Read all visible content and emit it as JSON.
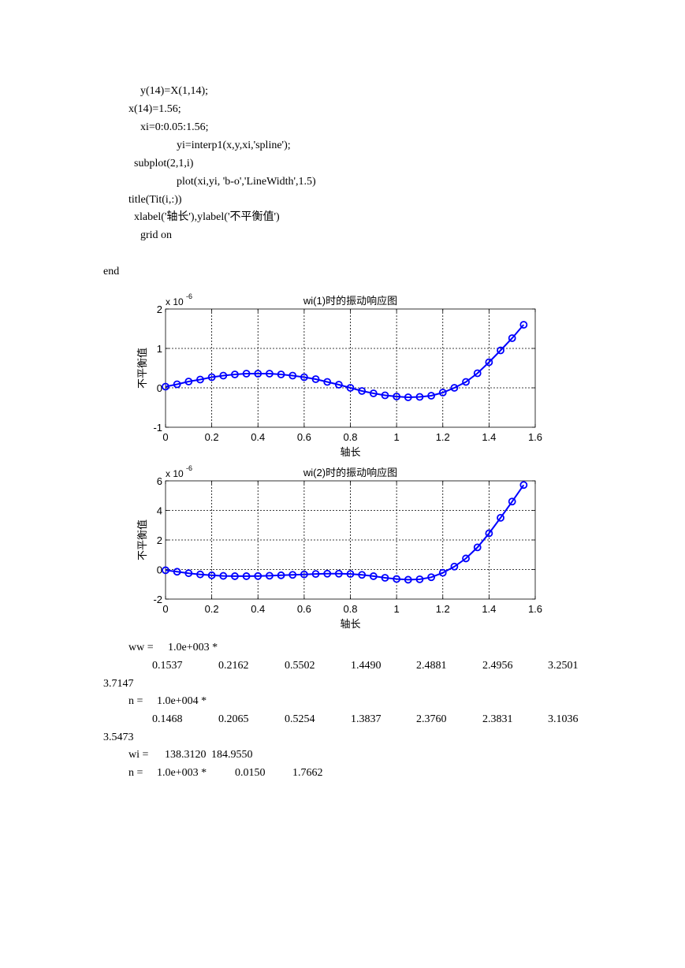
{
  "code_lines": [
    "y(14)=X(1,14);",
    "x(14)=1.56;",
    "xi=0:0.05:1.56;",
    "yi=interp1(x,y,xi,'spline');",
    "subplot(2,1,i)",
    "plot(xi,yi, 'b-o','LineWidth',1.5)",
    "title(Tit(i,:))",
    "xlabel('轴长'),ylabel('不平衡值')",
    "grid on",
    "end"
  ],
  "chart_data": [
    {
      "type": "line",
      "title": "wi(1)时的振动响应图",
      "xlabel": "轴长",
      "ylabel": "不平衡值",
      "scale_label": "x 10",
      "scale_exponent": "-6",
      "xlim": [
        0,
        1.6
      ],
      "ylim": [
        -1,
        2
      ],
      "xticks": [
        "0",
        "0.2",
        "0.4",
        "0.6",
        "0.8",
        "1",
        "1.2",
        "1.4",
        "1.6"
      ],
      "yticks": [
        "-1",
        "0",
        "1",
        "2"
      ],
      "grid": true,
      "color": "#0000ff",
      "marker": "circle",
      "x": [
        0,
        0.05,
        0.1,
        0.15,
        0.2,
        0.25,
        0.3,
        0.35,
        0.4,
        0.45,
        0.5,
        0.55,
        0.6,
        0.65,
        0.7,
        0.75,
        0.8,
        0.85,
        0.9,
        0.95,
        1.0,
        1.05,
        1.1,
        1.15,
        1.2,
        1.25,
        1.3,
        1.35,
        1.4,
        1.45,
        1.5,
        1.55
      ],
      "y": [
        0.03,
        0.09,
        0.16,
        0.21,
        0.27,
        0.31,
        0.34,
        0.36,
        0.36,
        0.36,
        0.34,
        0.31,
        0.27,
        0.22,
        0.15,
        0.08,
        0.0,
        -0.08,
        -0.14,
        -0.19,
        -0.22,
        -0.24,
        -0.23,
        -0.2,
        -0.12,
        0.0,
        0.15,
        0.37,
        0.65,
        0.95,
        1.26,
        1.6
      ]
    },
    {
      "type": "line",
      "title": "wi(2)时的振动响应图",
      "xlabel": "轴长",
      "ylabel": "不平衡值",
      "scale_label": "x 10",
      "scale_exponent": "-6",
      "xlim": [
        0,
        1.6
      ],
      "ylim": [
        -2,
        6
      ],
      "xticks": [
        "0",
        "0.2",
        "0.4",
        "0.6",
        "0.8",
        "1",
        "1.2",
        "1.4",
        "1.6"
      ],
      "yticks": [
        "-2",
        "0",
        "2",
        "4",
        "6"
      ],
      "grid": true,
      "color": "#0000ff",
      "marker": "circle",
      "x": [
        0,
        0.05,
        0.1,
        0.15,
        0.2,
        0.25,
        0.3,
        0.35,
        0.4,
        0.45,
        0.5,
        0.55,
        0.6,
        0.65,
        0.7,
        0.75,
        0.8,
        0.85,
        0.9,
        0.95,
        1.0,
        1.05,
        1.1,
        1.15,
        1.2,
        1.25,
        1.3,
        1.35,
        1.4,
        1.45,
        1.5,
        1.55
      ],
      "y": [
        -0.05,
        -0.15,
        -0.25,
        -0.33,
        -0.39,
        -0.43,
        -0.45,
        -0.45,
        -0.44,
        -0.42,
        -0.39,
        -0.36,
        -0.33,
        -0.3,
        -0.28,
        -0.28,
        -0.3,
        -0.36,
        -0.45,
        -0.56,
        -0.64,
        -0.69,
        -0.66,
        -0.52,
        -0.22,
        0.2,
        0.75,
        1.5,
        2.45,
        3.5,
        4.6,
        5.72
      ]
    }
  ],
  "output": {
    "ww_label": "ww =",
    "ww_scale": "1.0e+003 *",
    "ww_values": [
      "0.1537",
      "0.2162",
      "0.5502",
      "1.4490",
      "2.4881",
      "2.4956",
      "3.2501"
    ],
    "ww_last": "3.7147",
    "n1_label": "n =",
    "n1_scale": "1.0e+004 *",
    "n1_values": [
      "0.1468",
      "0.2065",
      "0.5254",
      "1.3837",
      "2.3760",
      "2.3831",
      "3.1036"
    ],
    "n1_last": "3.5473",
    "wi_label": "wi =",
    "wi_values": [
      "138.3120",
      "184.9550"
    ],
    "n2_label": "n =",
    "n2_scale": "1.0e+003 *",
    "n2_values": [
      "0.0150",
      "1.7662"
    ]
  }
}
